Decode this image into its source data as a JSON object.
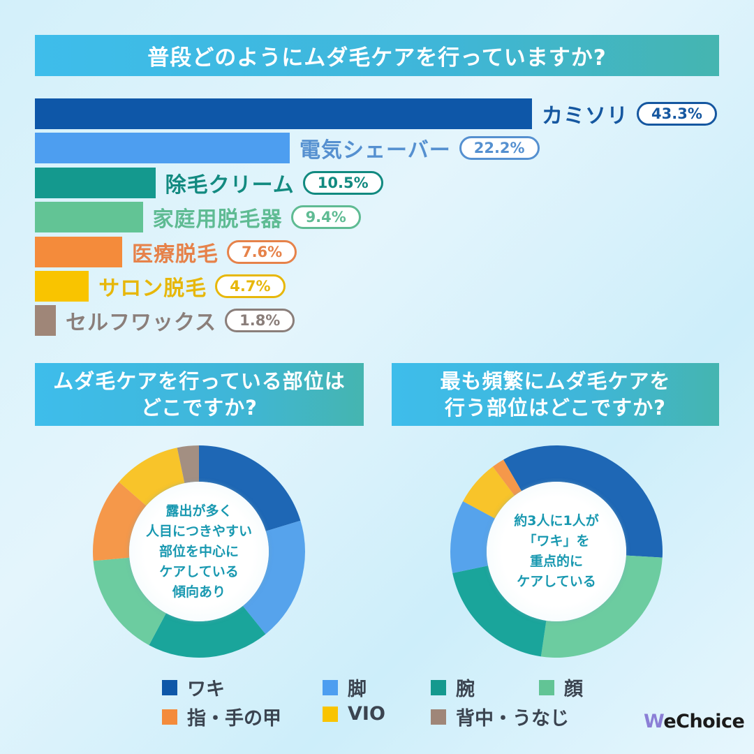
{
  "questions": {
    "main": "普段どのようにムダ毛ケアを行っていますか?",
    "left_line1": "ムダ毛ケアを行っている部位は",
    "left_line2": "どこですか?",
    "right_line1": "最も頻繁にムダ毛ケアを",
    "right_line2": "行う部位はどこですか?"
  },
  "chart_data": [
    {
      "type": "bar",
      "orientation": "horizontal",
      "title": "普段どのようにムダ毛ケアを行っていますか?",
      "categories": [
        "カミソリ",
        "電気シェーバー",
        "除毛クリーム",
        "家庭用脱毛器",
        "医療脱毛",
        "サロン脱毛",
        "セルフワックス"
      ],
      "values": [
        43.3,
        22.2,
        10.5,
        9.4,
        7.6,
        4.7,
        1.8
      ],
      "labels": [
        "43.3%",
        "22.2%",
        "10.5%",
        "9.4%",
        "7.6%",
        "4.7%",
        "1.8%"
      ],
      "colors": [
        "#0e57a8",
        "#4d9ef0",
        "#14998e",
        "#62c495",
        "#f48b3b",
        "#f9c400",
        "#9f8678"
      ],
      "label_colors": [
        "#1557a0",
        "#5590d0",
        "#128a80",
        "#5fbb93",
        "#e6824a",
        "#e7b70a",
        "#8a7e7a"
      ],
      "unit": "%"
    },
    {
      "type": "pie",
      "variant": "donut",
      "title": "ムダ毛ケアを行っている部位はどこですか?",
      "categories": [
        "ワキ",
        "脚",
        "腕",
        "顔",
        "指・手の甲",
        "VIO",
        "背中・うなじ"
      ],
      "values": [
        20.3,
        18.9,
        18.6,
        15.8,
        12.8,
        10.3,
        3.3
      ],
      "colors": [
        "#1e67b5",
        "#56a3ec",
        "#1aa59b",
        "#6ccca0",
        "#f5984a",
        "#f8c42a",
        "#a38f82"
      ],
      "start_angle_deg": 0,
      "center_text": [
        "露出が多く",
        "人目につきやすい",
        "部位を中心に",
        "ケアしている",
        "傾向あり"
      ]
    },
    {
      "type": "pie",
      "variant": "donut",
      "title": "最も頻繁にムダ毛ケアを行う部位はどこですか?",
      "categories": [
        "ワキ",
        "顔",
        "腕",
        "脚",
        "VIO",
        "指・手の甲"
      ],
      "values": [
        34.2,
        26.4,
        19.4,
        11.1,
        6.9,
        1.9
      ],
      "colors": [
        "#1e67b5",
        "#6ccca0",
        "#1aa59b",
        "#56a3ec",
        "#f8c42a",
        "#f5984a"
      ],
      "start_angle_deg": 330,
      "center_text": [
        "約3人に1人が",
        "「ワキ」を",
        "重点的に",
        "ケアしている"
      ]
    }
  ],
  "legend": [
    {
      "label": "ワキ",
      "color": "#0e57a8"
    },
    {
      "label": "脚",
      "color": "#4d9ef0"
    },
    {
      "label": "腕",
      "color": "#14998e"
    },
    {
      "label": "顔",
      "color": "#62c495"
    },
    {
      "label": "指・手の甲",
      "color": "#f48b3b"
    },
    {
      "label": "VIO",
      "color": "#f9c400"
    },
    {
      "label": "背中・うなじ",
      "color": "#9f8678"
    }
  ],
  "brand": {
    "prefix": "W",
    "rest": "eChoice",
    "name": "WeChoice"
  }
}
